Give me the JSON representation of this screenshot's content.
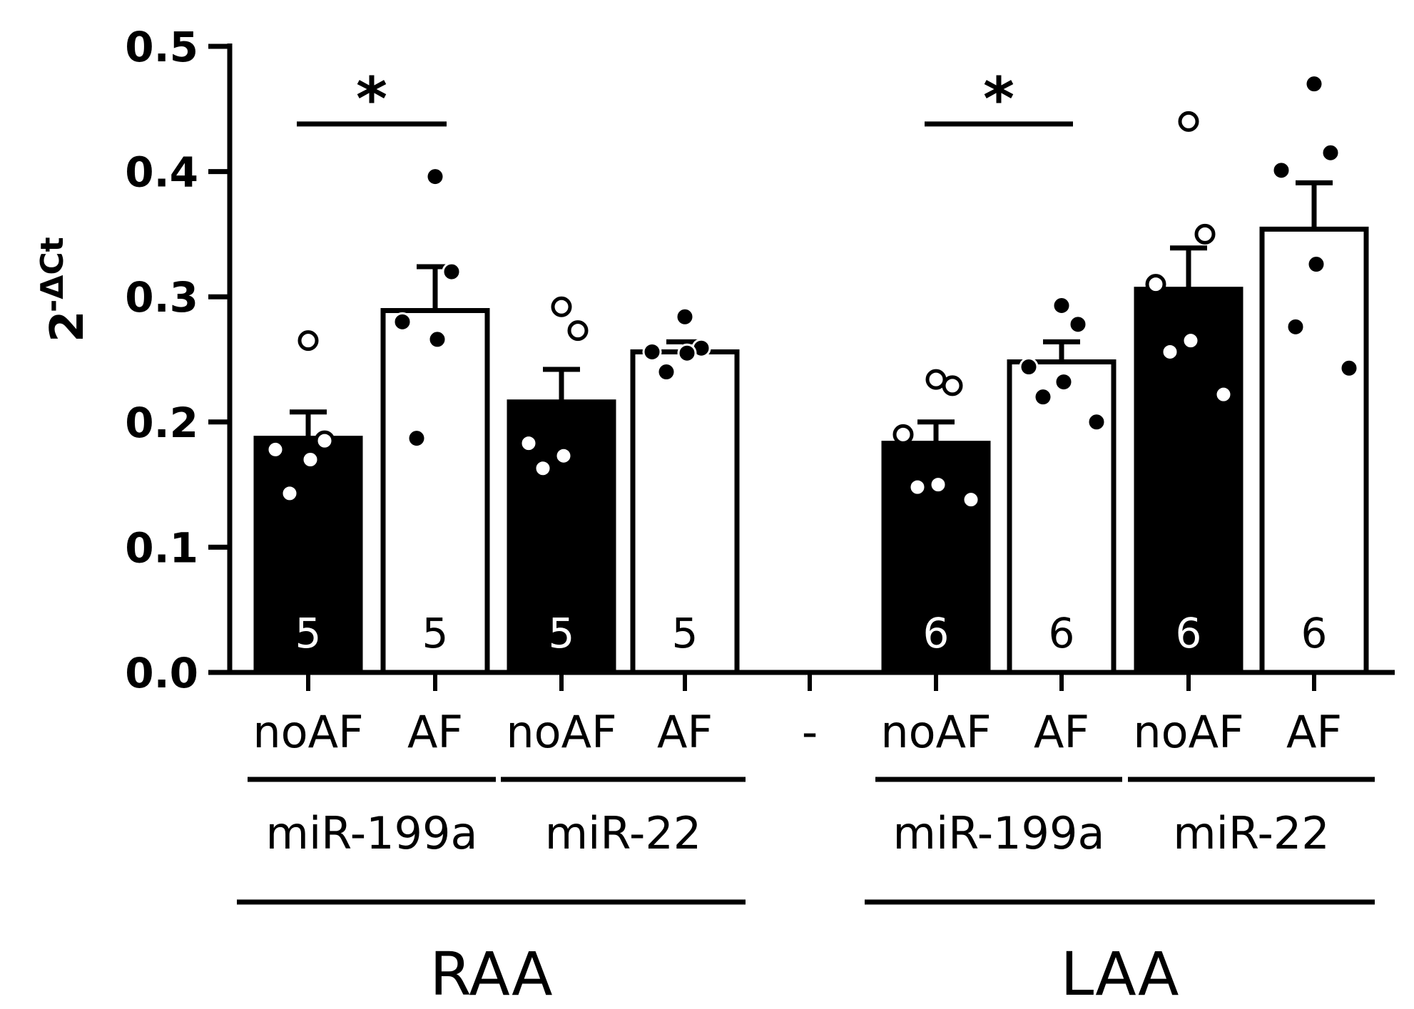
{
  "chart_data": {
    "type": "bar",
    "title": "",
    "ylabel": "2",
    "ylabel_superscript": "-ΔCt",
    "ylim": [
      0,
      0.5
    ],
    "yticks": [
      "0.0",
      "0.1",
      "0.2",
      "0.3",
      "0.4",
      "0.5"
    ],
    "bars": [
      {
        "label": "noAF",
        "mirna": "miR-199a",
        "region": "RAA",
        "mean": 0.187,
        "sem": 0.021,
        "n": "5",
        "fill": "black",
        "points": [
          0.265,
          0.185,
          0.178,
          0.17,
          0.143
        ],
        "point_style": "open"
      },
      {
        "label": "AF",
        "mirna": "miR-199a",
        "region": "RAA",
        "mean": 0.289,
        "sem": 0.035,
        "n": "5",
        "fill": "white",
        "points": [
          0.396,
          0.32,
          0.28,
          0.266,
          0.187
        ],
        "point_style": "filled"
      },
      {
        "label": "noAF",
        "mirna": "miR-22",
        "region": "RAA",
        "mean": 0.216,
        "sem": 0.026,
        "n": "5",
        "fill": "black",
        "points": [
          0.292,
          0.273,
          0.183,
          0.173,
          0.163
        ],
        "point_style": "open"
      },
      {
        "label": "AF",
        "mirna": "miR-22",
        "region": "RAA",
        "mean": 0.256,
        "sem": 0.008,
        "n": "5",
        "fill": "white",
        "points": [
          0.284,
          0.259,
          0.256,
          0.255,
          0.24
        ],
        "point_style": "filled"
      },
      {
        "label": "-",
        "mirna": "",
        "region": "",
        "mean": null,
        "sem": null,
        "n": "",
        "fill": "none",
        "points": [],
        "point_style": "none"
      },
      {
        "label": "noAF",
        "mirna": "miR-199a",
        "region": "LAA",
        "mean": 0.183,
        "sem": 0.017,
        "n": "6",
        "fill": "black",
        "points": [
          0.234,
          0.229,
          0.19,
          0.15,
          0.148,
          0.138
        ],
        "point_style": "open"
      },
      {
        "label": "AF",
        "mirna": "miR-199a",
        "region": "LAA",
        "mean": 0.248,
        "sem": 0.016,
        "n": "6",
        "fill": "white",
        "points": [
          0.293,
          0.278,
          0.244,
          0.232,
          0.22,
          0.2
        ],
        "point_style": "filled"
      },
      {
        "label": "noAF",
        "mirna": "miR-22",
        "region": "LAA",
        "mean": 0.306,
        "sem": 0.033,
        "n": "6",
        "fill": "black",
        "points": [
          0.44,
          0.35,
          0.31,
          0.265,
          0.256,
          0.222
        ],
        "point_style": "open"
      },
      {
        "label": "AF",
        "mirna": "miR-22",
        "region": "LAA",
        "mean": 0.354,
        "sem": 0.037,
        "n": "6",
        "fill": "white",
        "points": [
          0.47,
          0.415,
          0.401,
          0.326,
          0.276,
          0.243
        ],
        "point_style": "filled"
      }
    ],
    "mirna_groups": [
      {
        "label": "miR-199a",
        "bars": [
          0,
          1
        ]
      },
      {
        "label": "miR-22",
        "bars": [
          2,
          3
        ]
      },
      {
        "label": "miR-199a",
        "bars": [
          5,
          6
        ]
      },
      {
        "label": "miR-22",
        "bars": [
          7,
          8
        ]
      }
    ],
    "regions": [
      {
        "label": "RAA",
        "bars": [
          0,
          3
        ]
      },
      {
        "label": "LAA",
        "bars": [
          5,
          8
        ]
      }
    ],
    "significance": [
      {
        "from": 0,
        "to": 1,
        "label": "*",
        "y": 0.438
      },
      {
        "from": 5,
        "to": 6,
        "label": "*",
        "y": 0.438
      }
    ]
  }
}
